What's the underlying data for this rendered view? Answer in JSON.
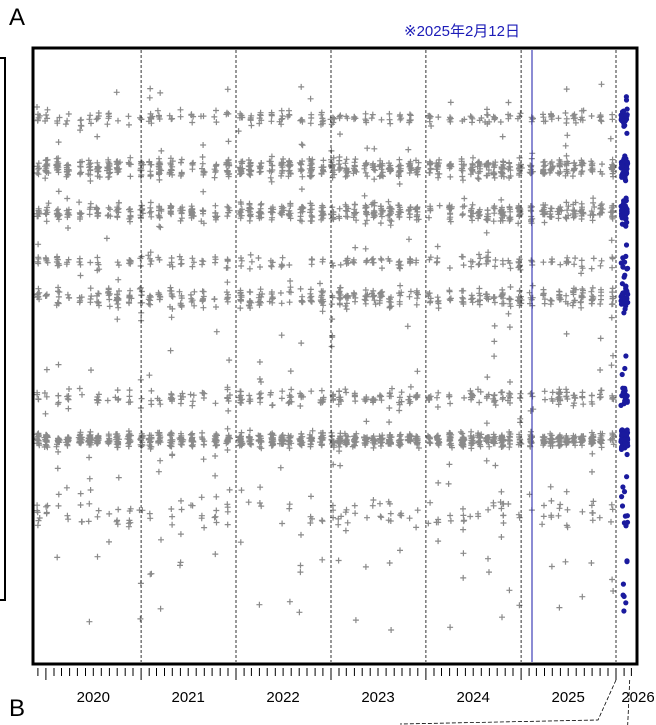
{
  "panel_labels": {
    "a": "A",
    "b": "B"
  },
  "annotation": "※2025年2月12日",
  "colors": {
    "historical": "#8a8a8a",
    "recent": "#1a1a9e",
    "marker_line": "#1a1aa8",
    "frame": "#000000"
  },
  "chart_data": {
    "type": "scatter",
    "title": "",
    "xlabel": "",
    "ylabel": "",
    "x_tick_labels": [
      "2020",
      "2021",
      "2022",
      "2023",
      "2024",
      "2025",
      "2026"
    ],
    "xlim": [
      "2019-11-20",
      "2026-03-15"
    ],
    "year_boundaries": [
      "2021-01-01",
      "2022-01-01",
      "2023-01-01",
      "2024-01-01",
      "2025-01-01",
      "2026-01-01"
    ],
    "vertical_marker": {
      "date": "2025-02-12",
      "label": "※2025年2月12日"
    },
    "grid": false,
    "legend": "none",
    "series": [
      {
        "marker": "plus",
        "color": "#8a8a8a",
        "date_range": [
          "2019-12-01",
          "2026-01-05"
        ]
      },
      {
        "marker": "dot",
        "color": "#1a1a9e",
        "date_range": [
          "2026-01-20",
          "2026-02-15"
        ]
      }
    ]
  }
}
